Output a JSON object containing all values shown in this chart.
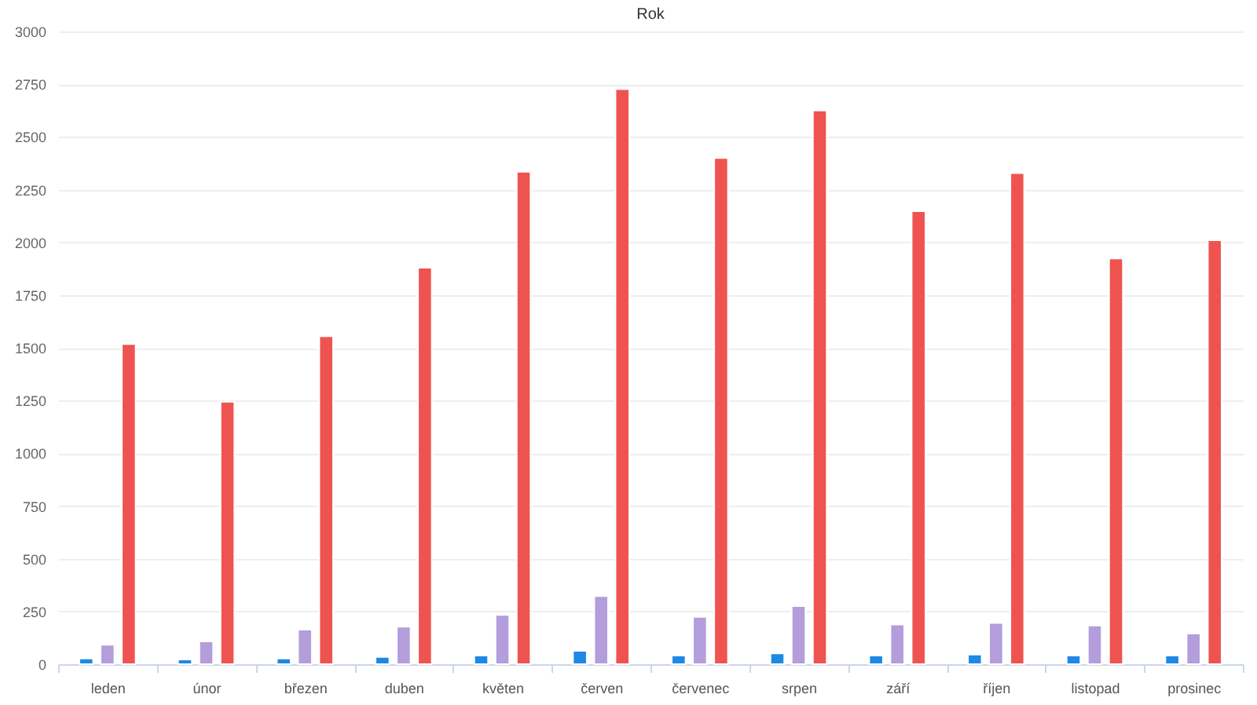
{
  "chart_data": {
    "type": "bar",
    "title": "Rok",
    "categories": [
      "leden",
      "únor",
      "březen",
      "duben",
      "květen",
      "červen",
      "červenec",
      "srpen",
      "září",
      "říjen",
      "listopad",
      "prosinec"
    ],
    "series": [
      {
        "color": "#1e88e5",
        "values": [
          27,
          22,
          27,
          34,
          41,
          63,
          41,
          51,
          41,
          46,
          41,
          41
        ]
      },
      {
        "color": "#b39ddb",
        "values": [
          92,
          108,
          164,
          178,
          234,
          323,
          224,
          275,
          188,
          195,
          183,
          145
        ]
      },
      {
        "color": "#ef5350",
        "values": [
          1518,
          1244,
          1555,
          1880,
          2335,
          2726,
          2400,
          2625,
          2148,
          2328,
          1923,
          2010
        ]
      }
    ],
    "ylim": [
      0,
      3000
    ],
    "yticks": [
      0,
      250,
      500,
      750,
      1000,
      1250,
      1500,
      1750,
      2000,
      2250,
      2500,
      2750,
      3000
    ],
    "grid": "y",
    "legend": false
  }
}
